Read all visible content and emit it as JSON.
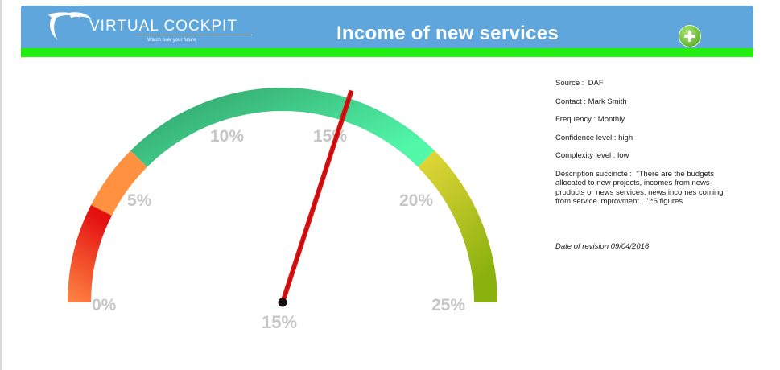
{
  "header": {
    "logo": {
      "brand": "VIRTUAL COCKPIT",
      "tagline": "Watch over your future"
    },
    "title": "Income of new services",
    "add_button_icon": "plus-circle-icon",
    "bg_color": "#5ea6dc",
    "bar_color": "#22ee11"
  },
  "gauge": {
    "min": 0,
    "max": 25,
    "value": 15,
    "value_label": "15%",
    "tick_labels": [
      "0%",
      "5%",
      "10%",
      "15%",
      "20%",
      "25%"
    ],
    "color_bands": [
      {
        "from": 0,
        "to": 3.75,
        "color_from": "#ff8844",
        "color_to": "#e31010"
      },
      {
        "from": 3.75,
        "to": 6.25,
        "color": "#ff9140"
      },
      {
        "from": 6.25,
        "to": 18.75,
        "color_from": "#2e9a66",
        "color_to": "#52f7a8"
      },
      {
        "from": 18.75,
        "to": 25,
        "color_from": "#e6d83a",
        "color_to": "#8bb10f"
      }
    ],
    "needle_color": "#dd1111"
  },
  "info": {
    "source": "Source :  DAF",
    "contact": "Contact : Mark Smith",
    "frequency": "Frequency : Monthly",
    "confidence": "Confidence level : high",
    "complexity": "Complexity level : low",
    "description": "Description succincte :  \"There are the budgets allocated to new projects, incomes from news products or news services, news incomes coming from service improvment...\" *6 figures",
    "revision": "Date of revision 09/04/2016"
  }
}
